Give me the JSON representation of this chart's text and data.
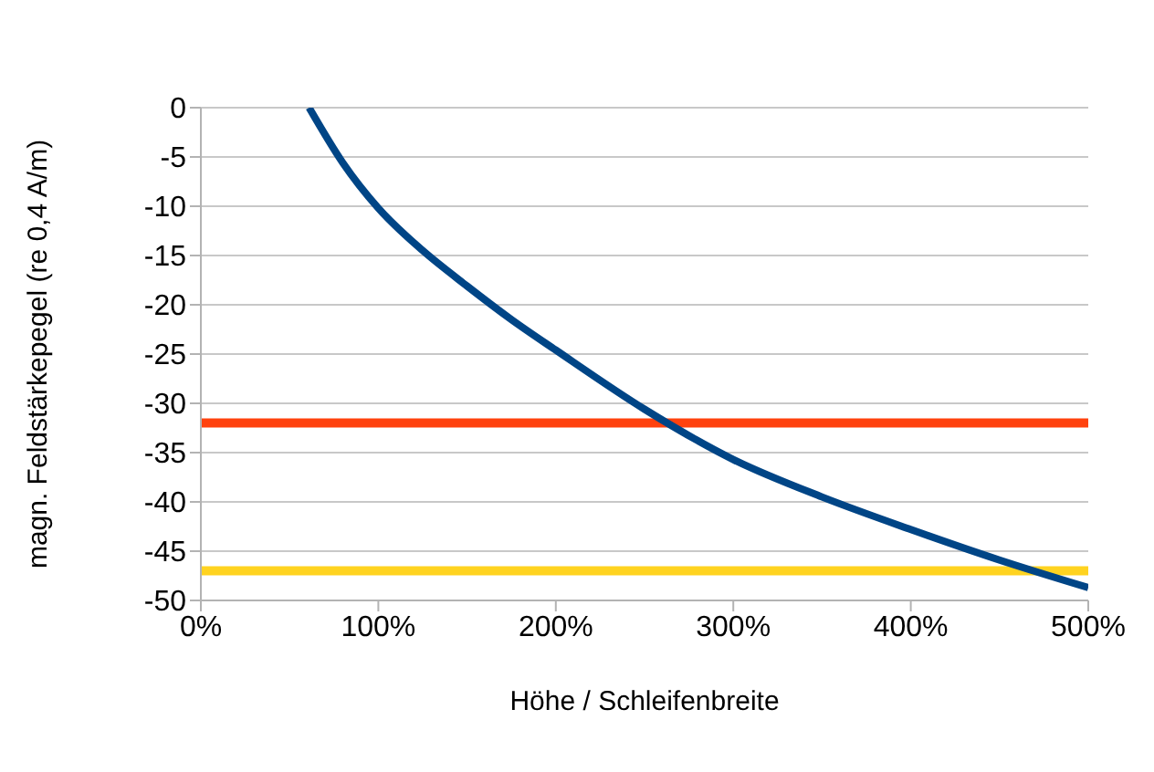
{
  "chart_data": {
    "type": "line",
    "xlabel": "Höhe / Schleifenbreite",
    "ylabel": "magn. Feldstärkepegel (re 0,4 A/m)",
    "series": [
      {
        "color": "#004586",
        "x": [
          61,
          80,
          100,
          125,
          150,
          175,
          200,
          250,
          300,
          350,
          400,
          450,
          500
        ],
        "values": [
          0,
          -5.6,
          -10.2,
          -14.5,
          -18.1,
          -21.5,
          -24.6,
          -30.6,
          -35.7,
          -39.5,
          -42.8,
          -45.9,
          -48.7
        ]
      }
    ],
    "xlim": [
      0,
      500
    ],
    "xticks": [
      {
        "value": 0,
        "label": "0%"
      },
      {
        "value": 100,
        "label": "100%"
      },
      {
        "value": 200,
        "label": "200%"
      },
      {
        "value": 300,
        "label": "300%"
      },
      {
        "value": 400,
        "label": "400%"
      },
      {
        "value": 500,
        "label": "500%"
      }
    ],
    "ylim": [
      -50,
      0
    ],
    "yticks": [
      -50,
      -45,
      -40,
      -35,
      -30,
      -25,
      -20,
      -15,
      -10,
      -5,
      0
    ],
    "ref_lines": [
      {
        "axis": "y",
        "value": -32,
        "color": "#ff420e"
      },
      {
        "axis": "y",
        "value": -47,
        "color": "#ffd320"
      }
    ],
    "grid": "y",
    "marker": "none",
    "line_style": "solid"
  }
}
